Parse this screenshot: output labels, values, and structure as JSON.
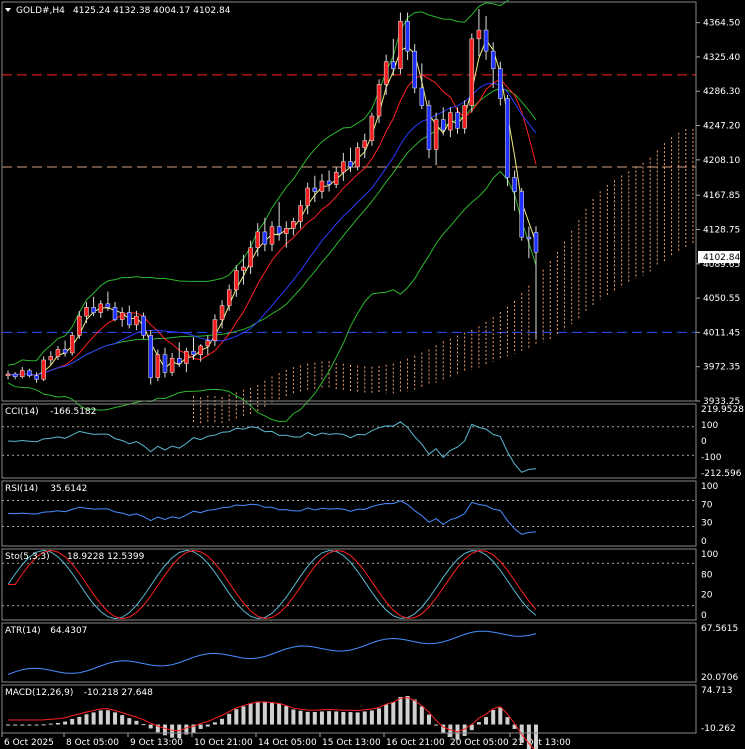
{
  "header": {
    "symbol": "GOLD#,H4",
    "ohlc": "4125.24 4132.38 4004.17 4102.84"
  },
  "chart_data": {
    "type": "candlestick",
    "symbol": "GOLD#",
    "timeframe": "H4",
    "last_price": "4102.84",
    "price_axis_ticks": [
      "4364.50",
      "4325.40",
      "4286.30",
      "4247.20",
      "4208.10",
      "4167.85",
      "4128.75",
      "4089.65",
      "4050.55",
      "4011.45",
      "3972.35",
      "3933.25"
    ],
    "price_range": [
      3933.25,
      4388
    ],
    "time_labels": [
      "6 Oct 2025",
      "8 Oct 05:00",
      "9 Oct 13:00",
      "10 Oct 21:00",
      "14 Oct 05:00",
      "15 Oct 13:00",
      "16 Oct 21:00",
      "20 Oct 05:00",
      "21 Oct 13:00"
    ],
    "horizontal_levels": [
      {
        "price": 4305,
        "color": "#ff2020",
        "style": "dash"
      },
      {
        "price": 4200,
        "color": "#d0a080",
        "style": "dash"
      },
      {
        "price": 4011.45,
        "color": "#3050ff",
        "style": "dash"
      }
    ],
    "candles": [
      [
        3962,
        3968,
        3958,
        3964
      ],
      [
        3964,
        3966,
        3958,
        3961
      ],
      [
        3961,
        3972,
        3959,
        3968
      ],
      [
        3968,
        3970,
        3960,
        3962
      ],
      [
        3962,
        3966,
        3954,
        3958
      ],
      [
        3958,
        3984,
        3956,
        3980
      ],
      [
        3980,
        3990,
        3974,
        3984
      ],
      [
        3984,
        3996,
        3980,
        3992
      ],
      [
        3992,
        4002,
        3984,
        3988
      ],
      [
        3988,
        4012,
        3985,
        4008
      ],
      [
        4008,
        4036,
        4004,
        4030
      ],
      [
        4030,
        4046,
        4022,
        4040
      ],
      [
        4040,
        4052,
        4030,
        4034
      ],
      [
        4034,
        4048,
        4028,
        4044
      ],
      [
        4044,
        4058,
        4036,
        4040
      ],
      [
        4040,
        4046,
        4024,
        4026
      ],
      [
        4026,
        4040,
        4018,
        4034
      ],
      [
        4034,
        4042,
        4016,
        4020
      ],
      [
        4020,
        4036,
        4014,
        4030
      ],
      [
        4030,
        4034,
        4004,
        4008
      ],
      [
        4008,
        4014,
        3952,
        3960
      ],
      [
        3960,
        3992,
        3956,
        3986
      ],
      [
        3986,
        3994,
        3960,
        3966
      ],
      [
        3966,
        3988,
        3962,
        3982
      ],
      [
        3982,
        4000,
        3972,
        3976
      ],
      [
        3976,
        3994,
        3966,
        3990
      ],
      [
        3990,
        4006,
        3980,
        3986
      ],
      [
        3986,
        3998,
        3978,
        3996
      ],
      [
        3996,
        4008,
        3986,
        4002
      ],
      [
        4002,
        4032,
        3996,
        4026
      ],
      [
        4026,
        4048,
        4016,
        4042
      ],
      [
        4042,
        4066,
        4036,
        4060
      ],
      [
        4060,
        4088,
        4052,
        4082
      ],
      [
        4082,
        4100,
        4066,
        4086
      ],
      [
        4086,
        4116,
        4078,
        4108
      ],
      [
        4108,
        4136,
        4098,
        4126
      ],
      [
        4126,
        4142,
        4104,
        4112
      ],
      [
        4112,
        4138,
        4104,
        4132
      ],
      [
        4132,
        4160,
        4116,
        4124
      ],
      [
        4124,
        4138,
        4108,
        4130
      ],
      [
        4130,
        4142,
        4122,
        4138
      ],
      [
        4138,
        4162,
        4130,
        4156
      ],
      [
        4156,
        4182,
        4146,
        4176
      ],
      [
        4176,
        4190,
        4160,
        4172
      ],
      [
        4172,
        4192,
        4164,
        4184
      ],
      [
        4184,
        4196,
        4172,
        4180
      ],
      [
        4180,
        4200,
        4176,
        4194
      ],
      [
        4194,
        4216,
        4184,
        4206
      ],
      [
        4206,
        4222,
        4194,
        4200
      ],
      [
        4200,
        4228,
        4196,
        4222
      ],
      [
        4222,
        4238,
        4210,
        4230
      ],
      [
        4230,
        4262,
        4224,
        4258
      ],
      [
        4258,
        4300,
        4250,
        4294
      ],
      [
        4294,
        4328,
        4282,
        4320
      ],
      [
        4320,
        4346,
        4304,
        4312
      ],
      [
        4312,
        4376,
        4306,
        4366
      ],
      [
        4366,
        4376,
        4322,
        4332
      ],
      [
        4332,
        4340,
        4284,
        4290
      ],
      [
        4290,
        4318,
        4266,
        4270
      ],
      [
        4270,
        4276,
        4210,
        4220
      ],
      [
        4220,
        4262,
        4202,
        4254
      ],
      [
        4254,
        4268,
        4236,
        4242
      ],
      [
        4242,
        4268,
        4234,
        4262
      ],
      [
        4262,
        4268,
        4238,
        4244
      ],
      [
        4244,
        4276,
        4238,
        4270
      ],
      [
        4270,
        4352,
        4262,
        4346
      ],
      [
        4346,
        4380,
        4326,
        4356
      ],
      [
        4356,
        4372,
        4322,
        4332
      ],
      [
        4332,
        4342,
        4290,
        4312
      ],
      [
        4312,
        4320,
        4270,
        4278
      ],
      [
        4278,
        4282,
        4178,
        4188
      ],
      [
        4188,
        4196,
        4150,
        4172
      ],
      [
        4172,
        4176,
        4116,
        4120
      ],
      [
        4120,
        4132,
        4096,
        4118
      ],
      [
        4125.24,
        4132.38,
        4004.17,
        4102.84
      ]
    ],
    "overlays": [
      "Bollinger Bands",
      "Ichimoku Cloud",
      "Moving Averages"
    ],
    "indicators": [
      {
        "name": "CCI(14)",
        "value": "-166.5182",
        "axis": [
          "219.9528",
          "100",
          "0",
          "-100",
          "-212.596"
        ],
        "color": "#5ab8d0"
      },
      {
        "name": "RSI(14)",
        "value": "35.6142",
        "axis": [
          "100",
          "70",
          "30",
          "0"
        ],
        "color": "#4a8dff"
      },
      {
        "name": "Sto(5,3,3)",
        "value": "18.9228 12.5399",
        "axis": [
          "100",
          "80",
          "20",
          "0"
        ],
        "color": "#5ab8d0",
        "signal_color": "#ff2020"
      },
      {
        "name": "ATR(14)",
        "value": "64.4307",
        "axis": [
          "67.5615",
          "20.0706"
        ],
        "color": "#4a8dff"
      },
      {
        "name": "MACD(12,26,9)",
        "value": "-10.218 27.648",
        "axis": [
          "74.713",
          "-10.262"
        ],
        "color": "#d0d0d0",
        "signal_color": "#ff2020"
      }
    ]
  }
}
